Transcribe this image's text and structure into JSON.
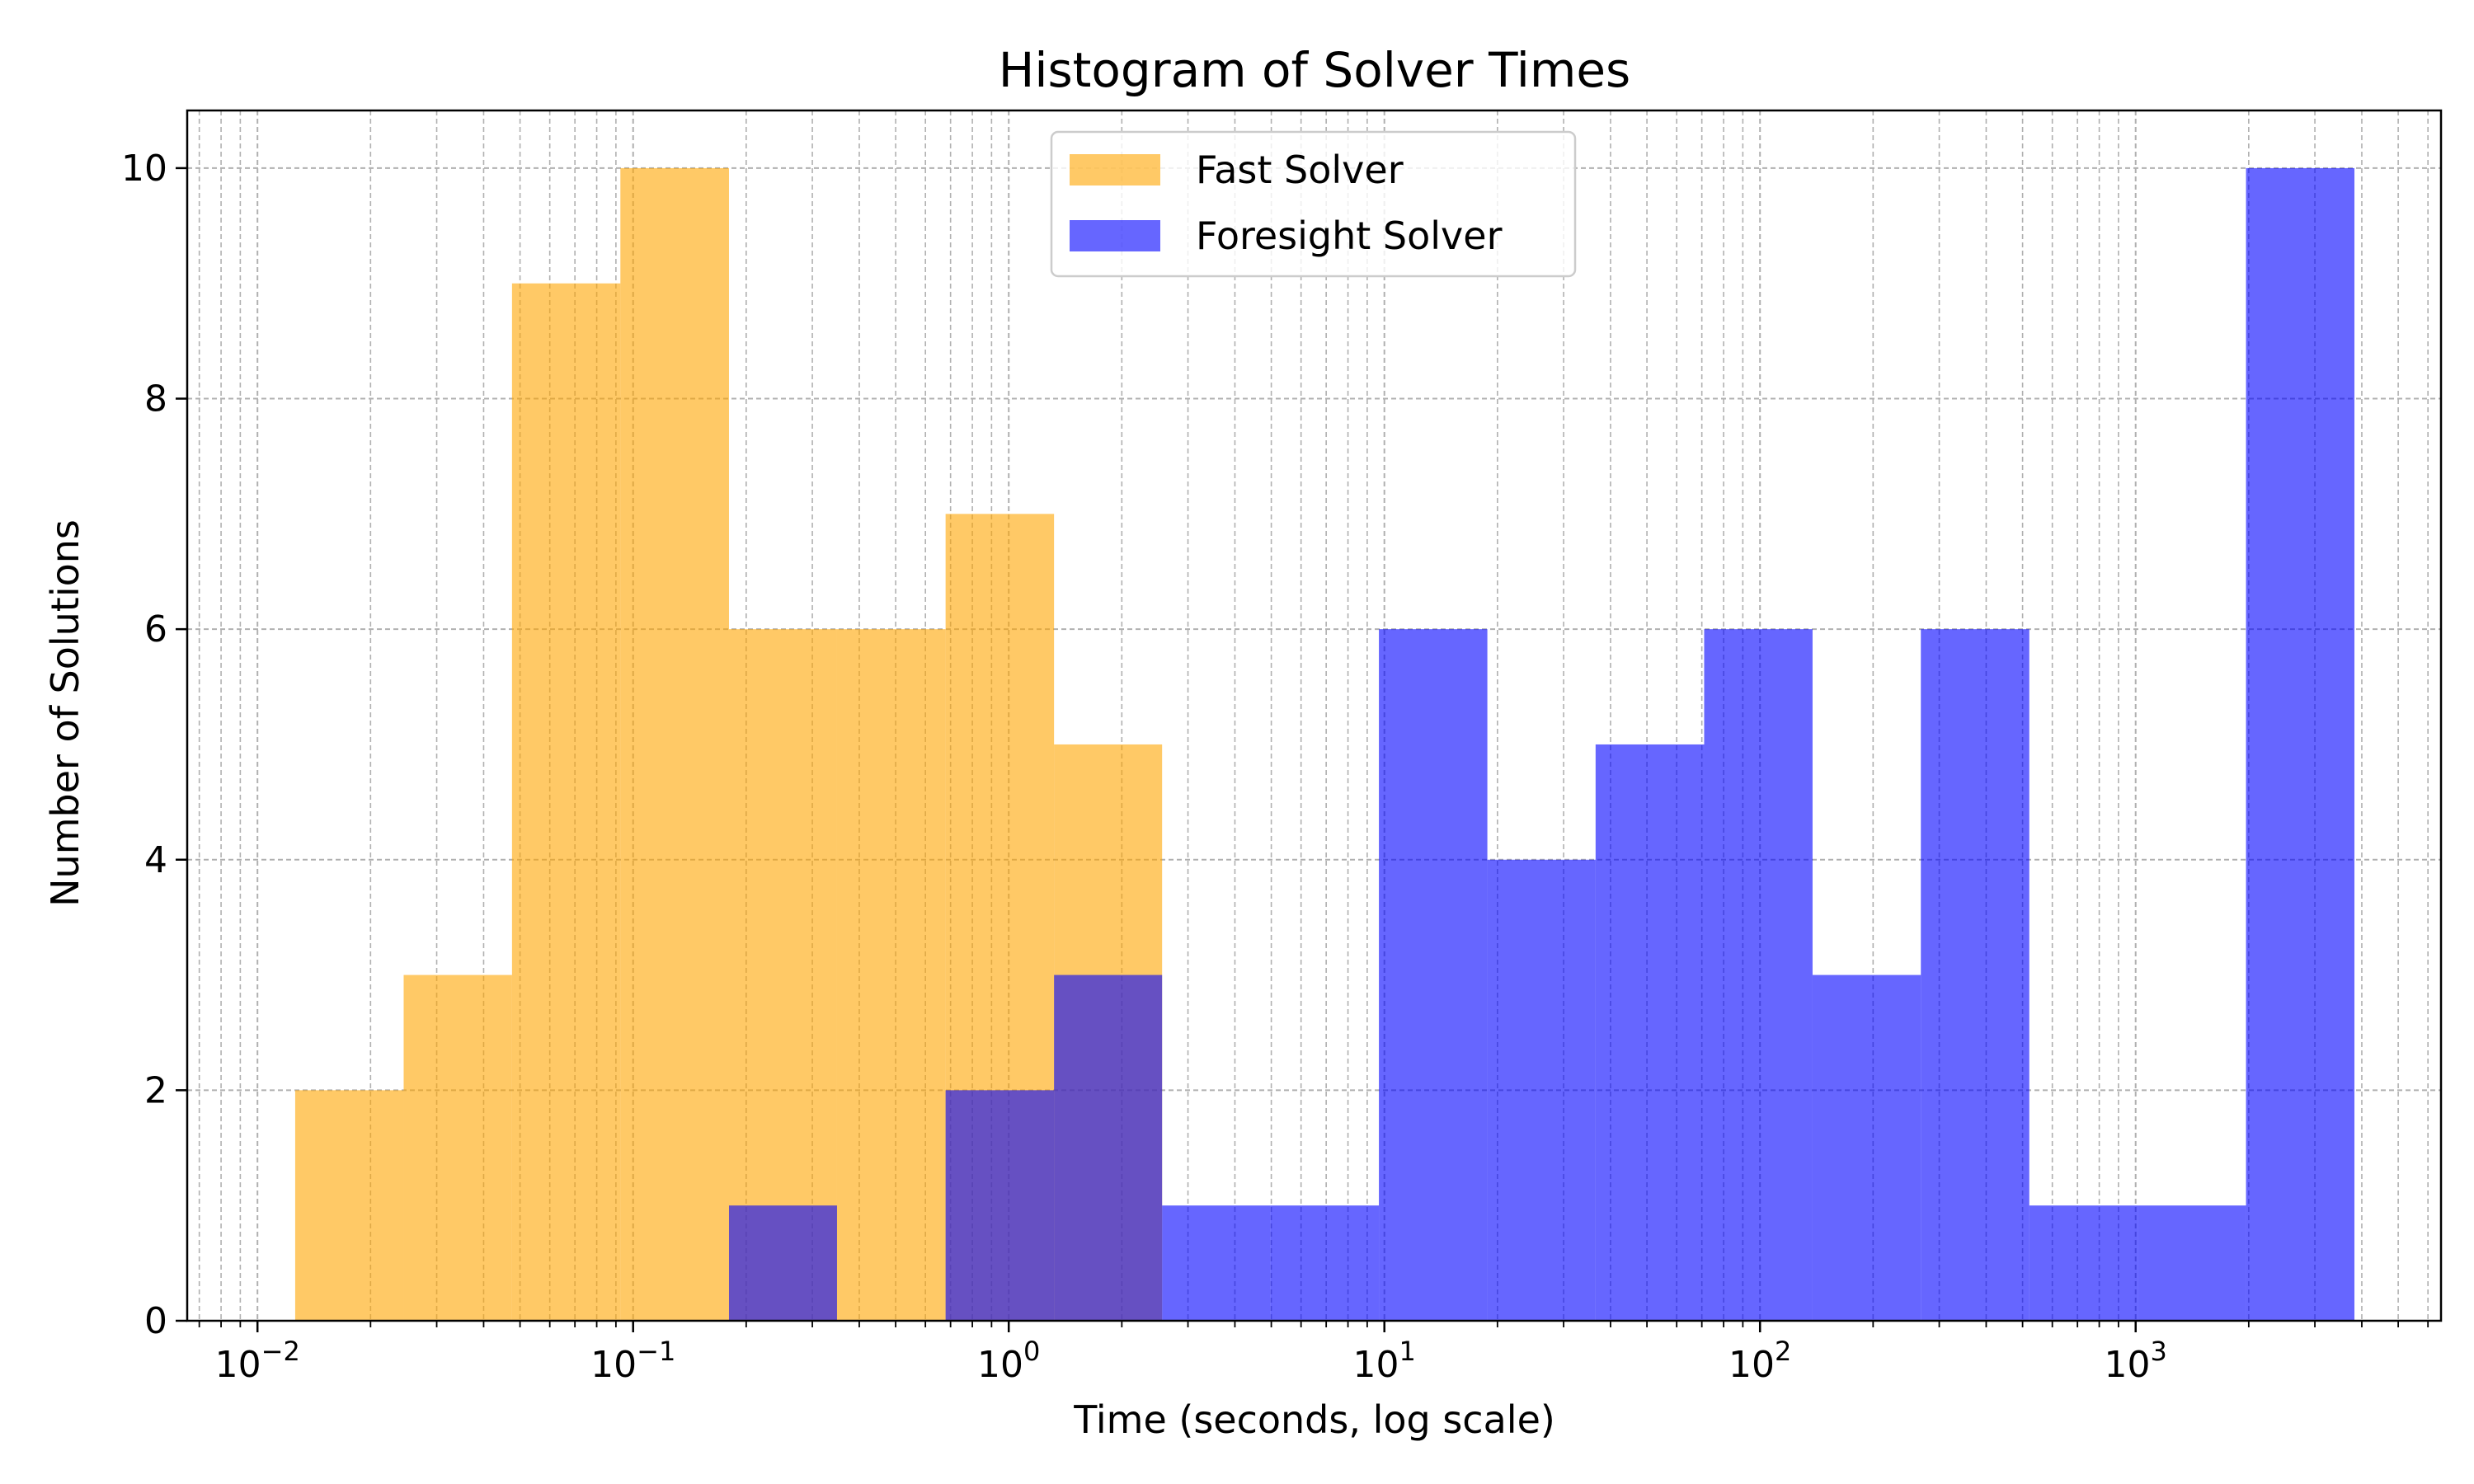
{
  "chart_data": {
    "type": "bar",
    "title": "Histogram of Solver Times",
    "xlabel": "Time (seconds, log scale)",
    "ylabel": "Number of Solutions",
    "x_scale": "log",
    "xlim": [
      0.0065,
      6500
    ],
    "ylim": [
      0,
      10.5
    ],
    "y_ticks": [
      0,
      2,
      4,
      6,
      8,
      10
    ],
    "y_tick_labels": [
      "0",
      "2",
      "4",
      "6",
      "8",
      "10"
    ],
    "x_tick_values": [
      0.01,
      0.1,
      1,
      10,
      100,
      1000
    ],
    "x_tick_labels": [
      {
        "base": "10",
        "exp": "−2"
      },
      {
        "base": "10",
        "exp": "−1"
      },
      {
        "base": "10",
        "exp": "0"
      },
      {
        "base": "10",
        "exp": "1"
      },
      {
        "base": "10",
        "exp": "2"
      },
      {
        "base": "10",
        "exp": "3"
      }
    ],
    "bin_edges": [
      0.0126,
      0.0245,
      0.0476,
      0.0925,
      0.18,
      0.349,
      0.679,
      1.32,
      2.56,
      4.98,
      9.67,
      18.8,
      36.5,
      71.0,
      138,
      268,
      521,
      1012,
      1967,
      3823
    ],
    "grid": true,
    "legend_position": "top-center",
    "series": [
      {
        "name": "Fast Solver",
        "color": "#ffa500",
        "opacity": 0.6,
        "counts": [
          2,
          3,
          9,
          10,
          6,
          6,
          7,
          5,
          0,
          0,
          0,
          0,
          0,
          0,
          0,
          0,
          0,
          0,
          0
        ]
      },
      {
        "name": "Foresight Solver",
        "color": "#0000ff",
        "opacity": 0.6,
        "counts": [
          0,
          0,
          0,
          0,
          1,
          0,
          2,
          3,
          1,
          1,
          6,
          4,
          5,
          6,
          3,
          6,
          1,
          1,
          10
        ]
      }
    ]
  }
}
